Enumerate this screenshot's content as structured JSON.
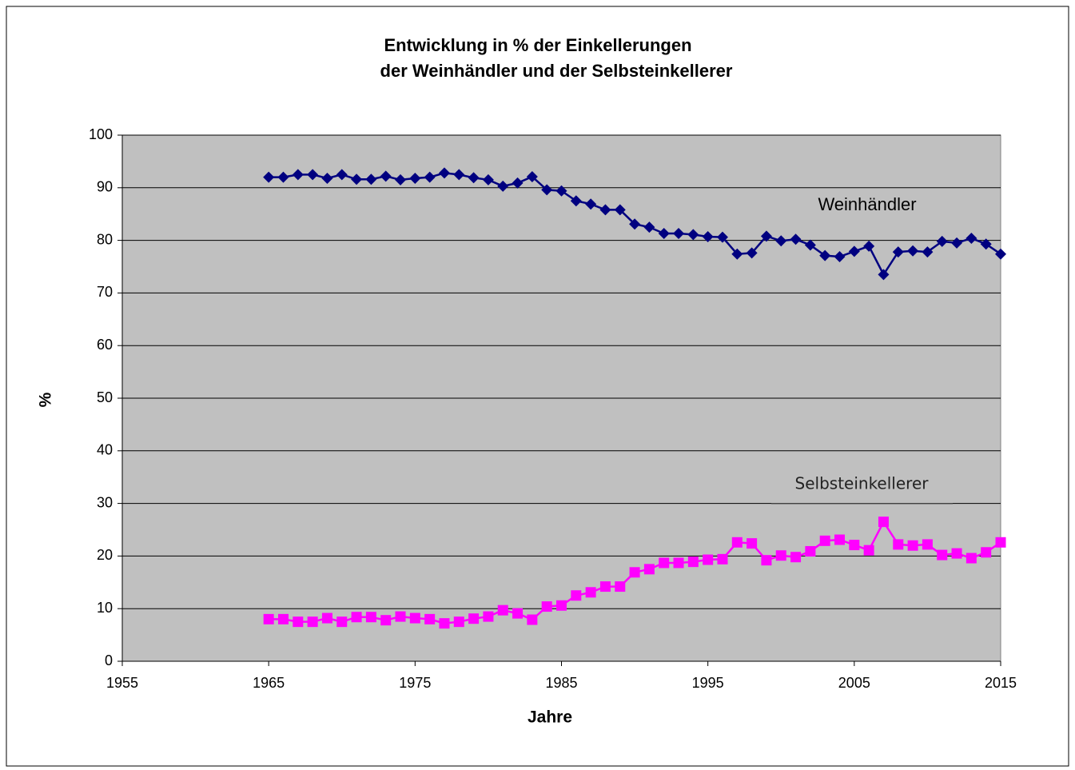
{
  "chart_data": {
    "type": "line",
    "title": [
      "Entwicklung in % der Einkellerungen",
      "der Weinhändler und der Selbsteinkellerer"
    ],
    "x_label": "Jahre",
    "y_label": "%",
    "x": [
      1965,
      1966,
      1967,
      1968,
      1969,
      1970,
      1971,
      1972,
      1973,
      1974,
      1975,
      1976,
      1977,
      1978,
      1979,
      1980,
      1981,
      1982,
      1983,
      1984,
      1985,
      1986,
      1987,
      1988,
      1989,
      1990,
      1991,
      1992,
      1993,
      1994,
      1995,
      1996,
      1997,
      1998,
      1999,
      2000,
      2001,
      2002,
      2003,
      2004,
      2005,
      2006,
      2007,
      2008,
      2009,
      2010,
      2011,
      2012,
      2013,
      2014,
      2015
    ],
    "series": [
      {
        "name": "Weinhändler",
        "color": "#000080",
        "marker": "diamond",
        "values": [
          92,
          92,
          92.5,
          92.5,
          91.8,
          92.5,
          91.6,
          91.6,
          92.2,
          91.5,
          91.8,
          92,
          92.8,
          92.5,
          91.9,
          91.5,
          90.3,
          90.9,
          92.1,
          89.6,
          89.4,
          87.5,
          86.9,
          85.8,
          85.8,
          83.1,
          82.5,
          81.3,
          81.3,
          81.1,
          80.7,
          80.6,
          77.4,
          77.6,
          80.8,
          79.9,
          80.2,
          79.1,
          77.1,
          76.9,
          77.9,
          78.9,
          73.5,
          77.8,
          78,
          77.8,
          79.8,
          79.5,
          80.4,
          79.3,
          77.4
        ]
      },
      {
        "name": "Selbsteinkellerer",
        "color": "#ff00ff",
        "marker": "square",
        "values": [
          8,
          8,
          7.5,
          7.5,
          8.2,
          7.5,
          8.4,
          8.4,
          7.8,
          8.5,
          8.2,
          8,
          7.2,
          7.5,
          8.1,
          8.5,
          9.7,
          9.1,
          7.9,
          10.4,
          10.6,
          12.5,
          13.1,
          14.2,
          14.2,
          16.9,
          17.5,
          18.7,
          18.7,
          18.9,
          19.3,
          19.4,
          22.6,
          22.4,
          19.2,
          20.1,
          19.8,
          20.9,
          22.9,
          23.1,
          22.1,
          21.1,
          26.5,
          22.2,
          22,
          22.2,
          20.2,
          20.5,
          19.6,
          20.7,
          22.6
        ]
      }
    ],
    "xlim": [
      1955,
      2015
    ],
    "xticks": [
      1955,
      1965,
      1975,
      1985,
      1995,
      2005,
      2015
    ],
    "ylim": [
      0,
      100
    ],
    "yticks": [
      0,
      10,
      20,
      30,
      40,
      50,
      60,
      70,
      80,
      90,
      100
    ],
    "grid": true,
    "plot_background": "#c0c0c0"
  }
}
